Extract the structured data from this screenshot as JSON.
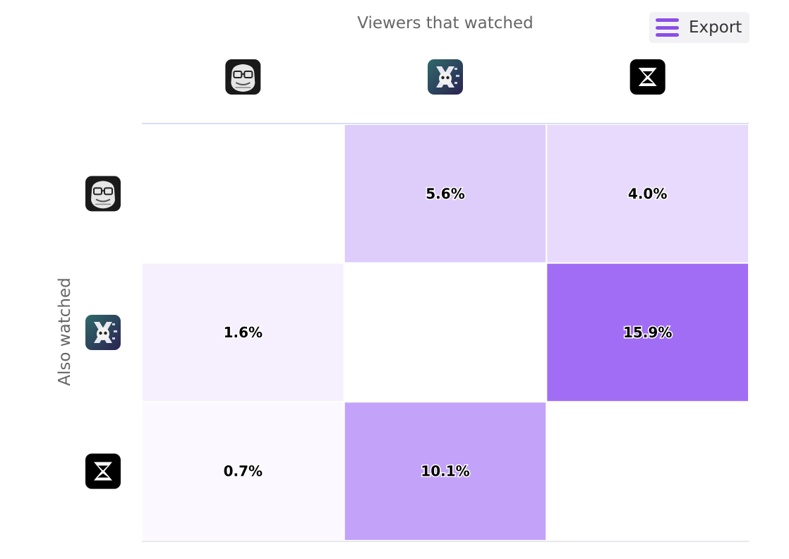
{
  "export_button": {
    "label": "Export",
    "icon": "hamburger-menu-icon",
    "color": "#8b4de8"
  },
  "chart_data": {
    "type": "heatmap",
    "title": "",
    "xlabel": "Viewers that watched",
    "ylabel": "Also watched",
    "x_categories": [
      {
        "icon": "gorilla-glasses-icon"
      },
      {
        "icon": "skeleton-glitch-icon"
      },
      {
        "icon": "hourglass-logo-icon"
      }
    ],
    "y_categories": [
      {
        "icon": "gorilla-glasses-icon"
      },
      {
        "icon": "skeleton-glitch-icon"
      },
      {
        "icon": "hourglass-logo-icon"
      }
    ],
    "cells": [
      {
        "row": 0,
        "col": 0,
        "value": null,
        "label": ""
      },
      {
        "row": 0,
        "col": 1,
        "value": 5.6,
        "label": "5.6%"
      },
      {
        "row": 0,
        "col": 2,
        "value": 4.0,
        "label": "4.0%"
      },
      {
        "row": 1,
        "col": 0,
        "value": 1.6,
        "label": "1.6%"
      },
      {
        "row": 1,
        "col": 1,
        "value": null,
        "label": ""
      },
      {
        "row": 1,
        "col": 2,
        "value": 15.9,
        "label": "15.9%"
      },
      {
        "row": 2,
        "col": 0,
        "value": 0.7,
        "label": "0.7%"
      },
      {
        "row": 2,
        "col": 1,
        "value": 10.1,
        "label": "10.1%"
      },
      {
        "row": 2,
        "col": 2,
        "value": null,
        "label": ""
      }
    ],
    "color_scale": {
      "min": 0,
      "max": 15.9,
      "min_color": "#ffffff",
      "max_color": "#a16df5"
    }
  }
}
